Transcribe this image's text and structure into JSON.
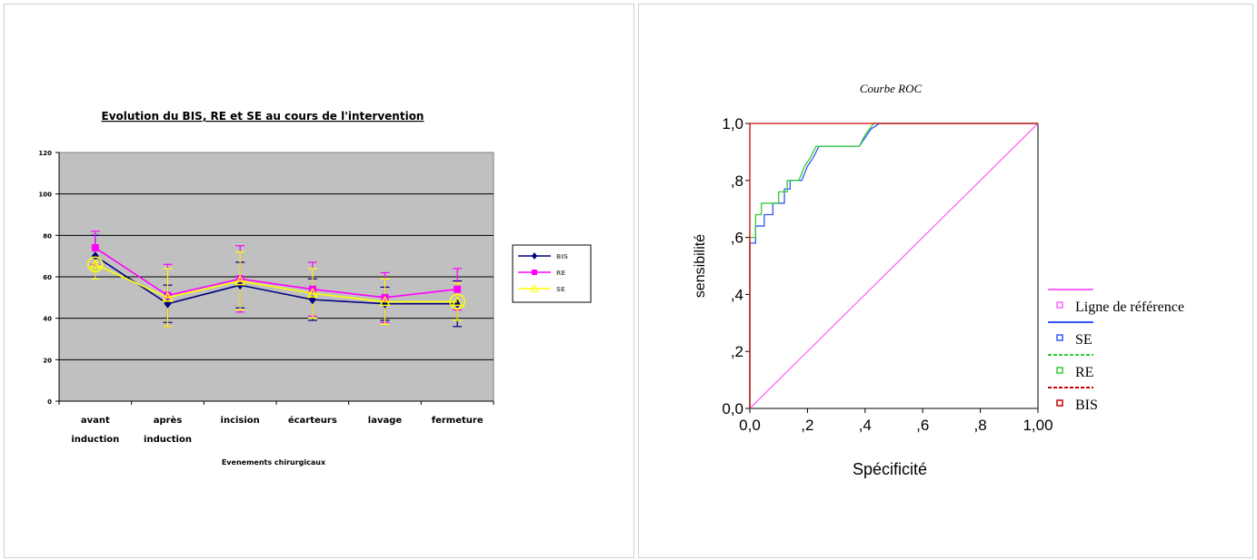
{
  "chart_data": [
    {
      "type": "line",
      "title": "Evolution du BIS, RE et SE au cours de l'intervention",
      "xlabel": "Evenements chirurgicaux",
      "ylabel": "",
      "categories": [
        "avant induction",
        "après induction",
        "incision",
        "écarteurs",
        "lavage",
        "fermeture"
      ],
      "category_lines": [
        [
          "avant",
          "induction"
        ],
        [
          "après",
          "induction"
        ],
        [
          "incision"
        ],
        [
          "écarteurs"
        ],
        [
          "lavage"
        ],
        [
          "fermeture"
        ]
      ],
      "ylim": [
        0,
        120
      ],
      "yticks": [
        "0",
        "20",
        "40",
        "60",
        "80",
        "100",
        "120"
      ],
      "grid": true,
      "legend_position": "right",
      "series": [
        {
          "name": "BIS",
          "color": "#000080",
          "marker": "diamond",
          "values": [
            70,
            47,
            56,
            49,
            47,
            47
          ],
          "errors": [
            10,
            9,
            11,
            10,
            8,
            11
          ]
        },
        {
          "name": "RE",
          "color": "#ff00ff",
          "marker": "square",
          "values": [
            74,
            51,
            59,
            54,
            50,
            54
          ],
          "errors": [
            8,
            15,
            16,
            13,
            12,
            10
          ]
        },
        {
          "name": "SE",
          "color": "#ffff00",
          "marker": "triangle",
          "values": [
            66,
            50,
            58,
            52,
            48,
            48
          ],
          "errors": [
            7,
            14,
            14,
            12,
            11,
            9
          ]
        }
      ]
    },
    {
      "type": "line",
      "title": "Courbe ROC",
      "xlabel": "Spécificité",
      "ylabel": "sensibilité",
      "xlim": [
        0,
        1
      ],
      "ylim": [
        0,
        1
      ],
      "xticks": [
        "0,0",
        ",2",
        ",4",
        ",6",
        ",8",
        "1,00"
      ],
      "yticks": [
        "0,0",
        ",2",
        ",4",
        ",6",
        ",8",
        "1,0"
      ],
      "legend_position": "right",
      "legend_entries": [
        "Ligne de référence",
        "SE",
        "RE",
        "BIS"
      ],
      "series": [
        {
          "name": "Ligne de référence",
          "color": "#ff66ff",
          "x": [
            0,
            1
          ],
          "y": [
            0,
            1
          ]
        },
        {
          "name": "SE",
          "color": "#3355ff",
          "x": [
            0,
            0,
            0.02,
            0.02,
            0.05,
            0.05,
            0.08,
            0.08,
            0.12,
            0.12,
            0.14,
            0.14,
            0.18,
            0.2,
            0.22,
            0.24,
            0.38,
            0.4,
            0.42,
            0.45,
            1
          ],
          "y": [
            0,
            0.58,
            0.58,
            0.64,
            0.64,
            0.68,
            0.68,
            0.72,
            0.72,
            0.77,
            0.77,
            0.8,
            0.8,
            0.85,
            0.88,
            0.92,
            0.92,
            0.95,
            0.98,
            1,
            1
          ]
        },
        {
          "name": "RE",
          "color": "#33cc33",
          "x": [
            0,
            0,
            0.02,
            0.02,
            0.04,
            0.04,
            0.1,
            0.1,
            0.13,
            0.13,
            0.17,
            0.19,
            0.21,
            0.23,
            0.38,
            0.4,
            0.43,
            1
          ],
          "y": [
            0,
            0.6,
            0.6,
            0.68,
            0.68,
            0.72,
            0.72,
            0.76,
            0.76,
            0.8,
            0.8,
            0.85,
            0.88,
            0.92,
            0.92,
            0.96,
            1,
            1
          ]
        },
        {
          "name": "BIS",
          "color": "#cc0000",
          "x": [
            0,
            0,
            1
          ],
          "y": [
            0,
            1,
            1
          ]
        }
      ]
    }
  ]
}
